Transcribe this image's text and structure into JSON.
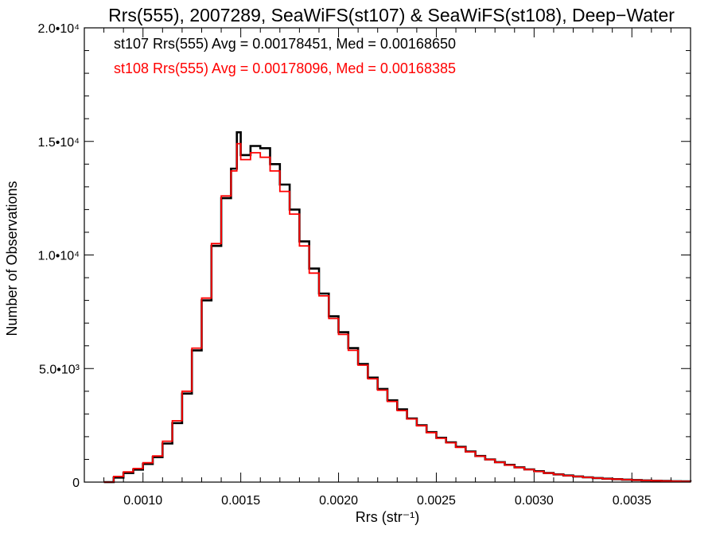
{
  "chart_data": {
    "type": "line",
    "step": true,
    "title": "Rrs(555), 2007289, SeaWiFS(st107) & SeaWiFS(st108), Deep−Water",
    "xlabel": "Rrs (str⁻¹)",
    "ylabel": "Number of Observations",
    "xlim": [
      0.0007,
      0.0038
    ],
    "ylim": [
      0,
      20000
    ],
    "x_ticks": [
      {
        "value": 0.001,
        "label": "0.0010"
      },
      {
        "value": 0.0015,
        "label": "0.0015"
      },
      {
        "value": 0.002,
        "label": "0.0020"
      },
      {
        "value": 0.0025,
        "label": "0.0025"
      },
      {
        "value": 0.003,
        "label": "0.0030"
      },
      {
        "value": 0.0035,
        "label": "0.0035"
      }
    ],
    "y_ticks": [
      {
        "value": 0,
        "label": "0"
      },
      {
        "value": 5000,
        "label": "5.0•10³"
      },
      {
        "value": 10000,
        "label": "1.0•10⁴"
      },
      {
        "value": 15000,
        "label": "1.5•10⁴"
      },
      {
        "value": 20000,
        "label": "2.0•10⁴"
      }
    ],
    "legend": [
      {
        "text": "st107 Rrs(555) Avg = 0.00178451, Med = 0.00168650",
        "color": "#000000"
      },
      {
        "text": "st108 Rrs(555) Avg = 0.00178096, Med = 0.00168385",
        "color": "#ff0000"
      }
    ],
    "legend_position": "top-left",
    "grid": false,
    "series": [
      {
        "color": "#000000",
        "x": [
          0.0008,
          0.00085,
          0.0009,
          0.00095,
          0.001,
          0.00105,
          0.0011,
          0.00115,
          0.0012,
          0.00125,
          0.0013,
          0.00135,
          0.0014,
          0.00145,
          0.00148,
          0.0015,
          0.00155,
          0.0016,
          0.00165,
          0.0017,
          0.00175,
          0.0018,
          0.00185,
          0.0019,
          0.00195,
          0.002,
          0.00205,
          0.0021,
          0.00215,
          0.0022,
          0.00225,
          0.0023,
          0.00235,
          0.0024,
          0.00245,
          0.0025,
          0.00255,
          0.0026,
          0.00265,
          0.0027,
          0.00275,
          0.0028,
          0.00285,
          0.0029,
          0.00295,
          0.003,
          0.00305,
          0.0031,
          0.00315,
          0.0032,
          0.00325,
          0.0033,
          0.00335,
          0.0034,
          0.00345,
          0.0035,
          0.00355,
          0.0036,
          0.00365,
          0.0037,
          0.00375,
          0.0038
        ],
        "y": [
          0,
          200,
          400,
          550,
          800,
          1100,
          1700,
          2600,
          3900,
          5800,
          8000,
          10400,
          12500,
          13800,
          15400,
          14400,
          14800,
          14700,
          14000,
          13100,
          12000,
          10600,
          9400,
          8300,
          7300,
          6600,
          5900,
          5200,
          4600,
          4100,
          3600,
          3200,
          2800,
          2500,
          2200,
          1950,
          1750,
          1550,
          1350,
          1150,
          1000,
          880,
          760,
          650,
          560,
          480,
          400,
          340,
          290,
          250,
          210,
          180,
          150,
          130,
          110,
          90,
          75,
          60,
          50,
          40,
          30,
          25
        ]
      },
      {
        "color": "#ff0000",
        "x": [
          0.0008,
          0.00085,
          0.0009,
          0.00095,
          0.001,
          0.00105,
          0.0011,
          0.00115,
          0.0012,
          0.00125,
          0.0013,
          0.00135,
          0.0014,
          0.00145,
          0.00148,
          0.0015,
          0.00155,
          0.0016,
          0.00165,
          0.0017,
          0.00175,
          0.0018,
          0.00185,
          0.0019,
          0.00195,
          0.002,
          0.00205,
          0.0021,
          0.00215,
          0.0022,
          0.00225,
          0.0023,
          0.00235,
          0.0024,
          0.00245,
          0.0025,
          0.00255,
          0.0026,
          0.00265,
          0.0027,
          0.00275,
          0.0028,
          0.00285,
          0.0029,
          0.00295,
          0.003,
          0.00305,
          0.0031,
          0.00315,
          0.0032,
          0.00325,
          0.0033,
          0.00335,
          0.0034,
          0.00345,
          0.0035,
          0.00355,
          0.0036,
          0.00365,
          0.0037,
          0.00375,
          0.0038
        ],
        "y": [
          0,
          250,
          450,
          600,
          850,
          1150,
          1800,
          2700,
          4000,
          5900,
          8100,
          10500,
          12600,
          13700,
          14900,
          14200,
          14500,
          14300,
          13700,
          12800,
          11800,
          10400,
          9200,
          8200,
          7200,
          6500,
          5800,
          5150,
          4550,
          4050,
          3550,
          3150,
          2780,
          2480,
          2180,
          1930,
          1730,
          1530,
          1330,
          1140,
          990,
          870,
          750,
          640,
          550,
          470,
          395,
          335,
          285,
          245,
          205,
          175,
          148,
          128,
          108,
          88,
          73,
          58,
          48,
          38,
          28,
          22
        ]
      }
    ]
  }
}
